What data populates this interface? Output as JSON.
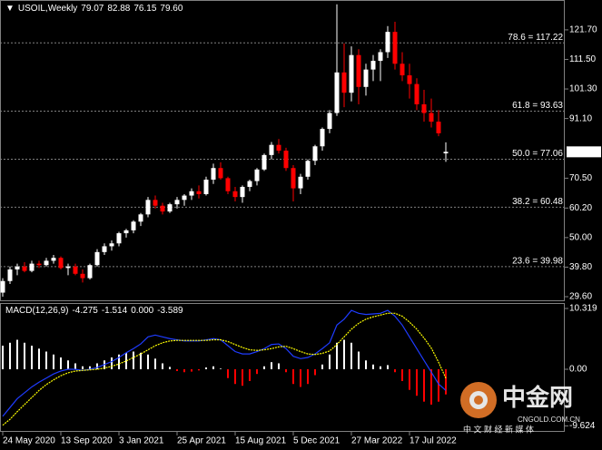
{
  "chart_data": {
    "type": "candlestick",
    "title": "USOIL,Weekly",
    "ohlc_labels": [
      "79.07",
      "82.88",
      "76.15",
      "79.60"
    ],
    "categories": [
      "24 May 2020",
      null,
      null,
      null,
      null,
      null,
      null,
      null,
      "13 Sep 2020",
      null,
      null,
      null,
      null,
      null,
      null,
      null,
      "3 Jan 2021",
      null,
      null,
      null,
      null,
      null,
      null,
      null,
      "25 Apr 2021",
      null,
      null,
      null,
      null,
      null,
      null,
      null,
      "15 Aug 2021",
      null,
      null,
      null,
      null,
      null,
      null,
      null,
      "5 Dec 2021",
      null,
      null,
      null,
      null,
      null,
      null,
      null,
      "27 Mar 2022",
      null,
      null,
      null,
      null,
      null,
      null,
      null,
      "17 Jul 2022",
      null,
      null,
      null,
      null,
      null
    ],
    "open": [
      31,
      35,
      39,
      40,
      38.5,
      41,
      40.5,
      42,
      43,
      39.5,
      40,
      37.5,
      36,
      40.5,
      45,
      47,
      48,
      51.5,
      52.5,
      55.5,
      58,
      63,
      61,
      59,
      61.5,
      63,
      64.5,
      66,
      65,
      70,
      74,
      70.5,
      66,
      64,
      67.5,
      69.5,
      73.5,
      78.5,
      82,
      80,
      74,
      67,
      71,
      76.5,
      81.5,
      87.5,
      93,
      107,
      100,
      113,
      102,
      108,
      111,
      114,
      121,
      110,
      106,
      103,
      96,
      93,
      90,
      79.07
    ],
    "high": [
      36,
      40,
      41,
      41.5,
      42,
      42,
      43,
      44,
      43.5,
      41,
      41,
      39,
      41,
      46,
      48,
      49,
      52,
      53,
      56,
      58.5,
      64,
      64.5,
      62,
      62,
      64,
      65,
      67,
      68,
      71,
      75.5,
      76,
      71,
      67.5,
      68,
      70,
      74,
      79,
      83,
      84,
      81,
      75,
      72,
      77,
      82,
      88,
      94,
      130.5,
      117,
      116,
      115,
      110,
      113,
      115,
      123,
      124.5,
      114,
      110,
      105,
      101,
      98,
      94,
      82.88
    ],
    "low": [
      29.6,
      34,
      37,
      38,
      38,
      39.5,
      40,
      41,
      39,
      37,
      37,
      34.5,
      35.5,
      40,
      44,
      45.5,
      47,
      50,
      51.5,
      54,
      57,
      60,
      58,
      58.5,
      60,
      61,
      63,
      63.5,
      64.5,
      68.5,
      70,
      65,
      62.5,
      62,
      66,
      68,
      73,
      77,
      79,
      73,
      62.5,
      65,
      70,
      75,
      80,
      86,
      92,
      95,
      97,
      96,
      99,
      104,
      104,
      112,
      108,
      104,
      98,
      94,
      90,
      88,
      85,
      76.15
    ],
    "close": [
      35,
      39,
      40,
      38.5,
      41,
      40.5,
      42,
      43,
      39.5,
      40,
      37.5,
      36,
      40.5,
      45,
      47,
      48,
      51.5,
      52.5,
      55.5,
      58,
      63,
      61,
      59,
      61.5,
      63,
      64.5,
      66,
      65,
      70,
      74,
      70.5,
      66,
      64,
      67.5,
      69.5,
      73.5,
      78.5,
      82,
      80,
      74,
      67,
      71,
      76.5,
      81.5,
      87.5,
      93,
      107,
      100,
      113,
      102,
      108,
      111,
      114,
      121,
      110,
      106,
      103,
      96,
      93,
      90,
      86,
      79.6
    ],
    "up_color": "#ffffff",
    "down_color": "#ff0000",
    "ylim": [
      28.35,
      131.69
    ],
    "yticks": [
      {
        "value": 121.7,
        "label": "121.70"
      },
      {
        "value": 111.5,
        "label": "111.50"
      },
      {
        "value": 101.3,
        "label": "101.30"
      },
      {
        "value": 91.1,
        "label": "91.10"
      },
      {
        "value": 70.5,
        "label": "70.50"
      },
      {
        "value": 60.2,
        "label": "60.20"
      },
      {
        "value": 50,
        "label": "50.00"
      },
      {
        "value": 39.8,
        "label": "39.80"
      },
      {
        "value": 29.6,
        "label": "29.60"
      }
    ],
    "fibonacci": [
      {
        "value": 117.22,
        "label": "78.6 = 117.22"
      },
      {
        "value": 93.63,
        "label": "61.8 = 93.63"
      },
      {
        "value": 77.06,
        "label": "50.0 = 77.06"
      },
      {
        "value": 60.48,
        "label": "38.2 = 60.48"
      },
      {
        "value": 39.98,
        "label": "23.6 = 39.98"
      }
    ],
    "indicator": {
      "type": "macd",
      "title": "MACD(12,26,9)",
      "readings": [
        -4.275,
        -1.514,
        {
          "value": 0,
          "label": "0.000"
        },
        -3.589
      ],
      "histogram": [
        4,
        4.5,
        5,
        4.5,
        4,
        3.5,
        3,
        2.5,
        2,
        1.5,
        1,
        0.5,
        0.5,
        1,
        1.5,
        2,
        2.5,
        2.8,
        3,
        2.8,
        2.5,
        1.8,
        1,
        0.4,
        -0.3,
        -0.5,
        -0.4,
        -0.2,
        0.3,
        0.5,
        0.1,
        -1.5,
        -2.5,
        -2.8,
        -2,
        -0.8,
        0.5,
        1.2,
        1,
        -0.5,
        -2.5,
        -3,
        -2.5,
        -1,
        0.8,
        2.5,
        4.5,
        5,
        4.5,
        3,
        1.5,
        0.8,
        0.5,
        0.7,
        -0.5,
        -2,
        -3.5,
        -4.5,
        -5.5,
        -6,
        -5.5,
        -4.275
      ],
      "positive_color": "#ffffff",
      "negative_color": "#ff0000",
      "main": {
        "color": "#1f3cff",
        "values": [
          -8,
          -6.5,
          -5,
          -4,
          -3,
          -2.2,
          -1.5,
          -0.8,
          -0.3,
          0,
          0,
          -0.2,
          0,
          0.3,
          0.8,
          1.3,
          2,
          2.8,
          3.5,
          4.3,
          5.5,
          5.8,
          5.5,
          5.2,
          5,
          4.8,
          4.8,
          4.8,
          5,
          5.2,
          5,
          4,
          3,
          2.6,
          2.6,
          3,
          3.5,
          4.2,
          4.3,
          3.5,
          2.2,
          1.8,
          2,
          2.6,
          3.5,
          4.5,
          7.5,
          8.5,
          10,
          9.5,
          9.3,
          9.4,
          9.5,
          10,
          9,
          7.5,
          5.5,
          3.5,
          1.5,
          -0.5,
          -2.5,
          -3.589
        ]
      },
      "signal": {
        "color": "#ffff00",
        "values": [
          -9.5,
          -8.5,
          -7.2,
          -6,
          -4.8,
          -3.6,
          -2.6,
          -1.8,
          -1.1,
          -0.6,
          -0.3,
          -0.2,
          -0.1,
          0,
          0.2,
          0.5,
          0.9,
          1.4,
          2,
          2.6,
          3.3,
          4,
          4.5,
          4.8,
          4.9,
          4.9,
          4.9,
          4.9,
          4.9,
          5,
          5,
          4.7,
          4.2,
          3.7,
          3.3,
          3.2,
          3.3,
          3.5,
          3.8,
          3.9,
          3.5,
          3,
          2.6,
          2.5,
          2.7,
          3.1,
          4.2,
          5.5,
          6.8,
          7.8,
          8.5,
          8.9,
          9.2,
          9.5,
          9.5,
          9,
          8,
          6.8,
          5.3,
          3.6,
          1.2,
          -1.514
        ]
      },
      "ylim": [
        -10.63,
        11.09
      ],
      "yticks": [
        {
          "value": 10.319,
          "label": "10.319"
        },
        {
          "value": 0,
          "label": "0.00"
        },
        {
          "value": -9.624,
          "label": "-9.624"
        }
      ]
    },
    "watermark": {
      "title": "中金网",
      "site": "CNGOLD.COM.CN",
      "slogan": "中 文 财 经 新 媒 体"
    }
  }
}
